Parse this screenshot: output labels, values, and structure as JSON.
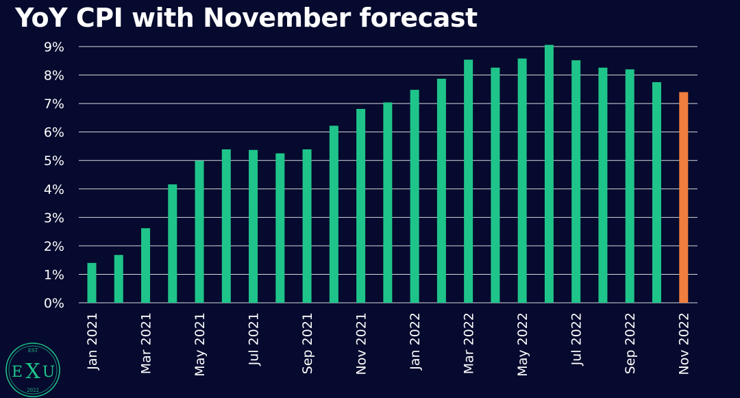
{
  "chart_data": {
    "type": "bar",
    "title": "YoY CPI with November forecast",
    "xlabel": "",
    "ylabel": "",
    "ylim": [
      0,
      9
    ],
    "y_ticks": [
      "0%",
      "1%",
      "2%",
      "3%",
      "4%",
      "5%",
      "6%",
      "7%",
      "8%",
      "9%"
    ],
    "grid": true,
    "categories": [
      "Jan 2021",
      "Feb 2021",
      "Mar 2021",
      "Apr 2021",
      "May 2021",
      "Jun 2021",
      "Jul 2021",
      "Aug 2021",
      "Sep 2021",
      "Oct 2021",
      "Nov 2021",
      "Dec 2021",
      "Jan 2022",
      "Feb 2022",
      "Mar 2022",
      "Apr 2022",
      "May 2022",
      "Jun 2022",
      "Jul 2022",
      "Aug 2022",
      "Sep 2022",
      "Oct 2022",
      "Nov 2022"
    ],
    "x_tick_labels": [
      "Jan 2021",
      "",
      "Mar 2021",
      "",
      "May 2021",
      "",
      "Jul 2021",
      "",
      "Sep 2021",
      "",
      "Nov 2021",
      "",
      "Jan 2022",
      "",
      "Mar 2022",
      "",
      "May 2022",
      "",
      "Jul 2022",
      "",
      "Sep 2022",
      "",
      "Nov 2022"
    ],
    "values": [
      1.4,
      1.68,
      2.62,
      4.16,
      4.99,
      5.39,
      5.37,
      5.25,
      5.39,
      6.22,
      6.81,
      7.04,
      7.48,
      7.87,
      8.54,
      8.26,
      8.58,
      9.06,
      8.52,
      8.26,
      8.2,
      7.75,
      7.4
    ],
    "colors": {
      "actual": "#1fc48a",
      "forecast": "#f07e3e",
      "background": "#060a2e",
      "grid": "#ffffff",
      "text": "#ffffff"
    },
    "forecast_index": 22
  },
  "logo": {
    "top_text": "EST",
    "letters": [
      "E",
      "X",
      "U"
    ],
    "year": "2022",
    "color": "#1fc48a"
  }
}
